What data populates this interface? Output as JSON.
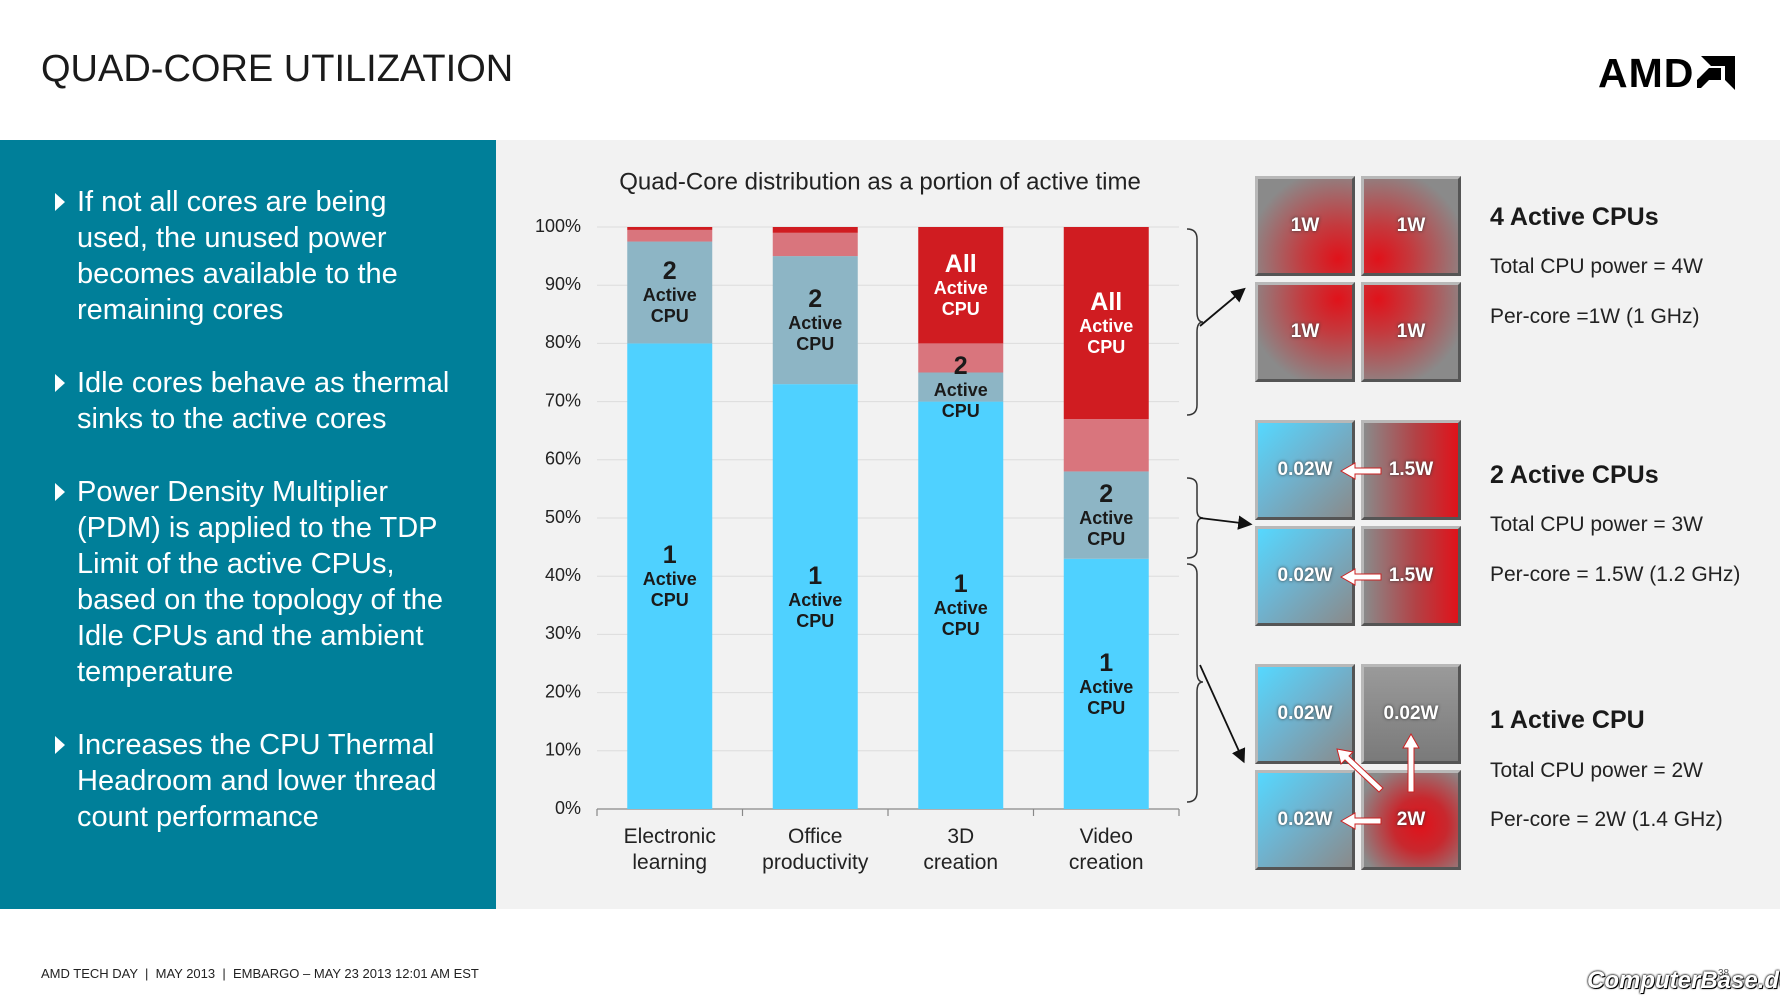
{
  "header": {
    "title": "QUAD-CORE UTILIZATION",
    "logo": "AMD"
  },
  "bullets": [
    "If not all cores are being used, the unused power becomes available to the remaining cores",
    "Idle cores behave as thermal sinks to the active cores",
    "Power Density Multiplier (PDM) is applied to the TDP Limit of the active CPUs, based on the topology of the Idle CPUs and the ambient temperature",
    "Increases the CPU Thermal Headroom and lower thread count performance"
  ],
  "chart_data": {
    "type": "bar",
    "stacked": true,
    "title": "Quad-Core distribution as a portion of active time",
    "categories": [
      "Electronic\nlearning",
      "Office\nproductivity",
      "3D\ncreation",
      "Video\ncreation"
    ],
    "series": [
      {
        "name": "1\nActive\nCPU",
        "color": "#4fd1ff",
        "values": [
          80,
          73,
          70,
          43
        ]
      },
      {
        "name": "2\nActive\nCPU",
        "color": "#8db5c5",
        "values": [
          17.5,
          22,
          5,
          15
        ]
      },
      {
        "color": "#d9757d",
        "values": [
          2,
          4,
          5,
          9
        ]
      },
      {
        "name": "All\nActive\nCPU",
        "color": "#d01c21",
        "values": [
          0.5,
          1,
          20,
          33
        ]
      }
    ],
    "ylim": [
      0,
      100
    ],
    "yticks": [
      {
        "value": 0,
        "label": "0%"
      },
      {
        "value": 10,
        "label": "10%"
      },
      {
        "value": 20,
        "label": "20%"
      },
      {
        "value": 30,
        "label": "30%"
      },
      {
        "value": 40,
        "label": "40%"
      },
      {
        "value": 50,
        "label": "50%"
      },
      {
        "value": 60,
        "label": "60%"
      },
      {
        "value": 70,
        "label": "70%"
      },
      {
        "value": 80,
        "label": "80%"
      },
      {
        "value": 90,
        "label": "90%"
      },
      {
        "value": 100,
        "label": "100%"
      }
    ],
    "grid": true
  },
  "configs": [
    {
      "heading": "4 Active CPUs",
      "lines": [
        "Total CPU power = 4W",
        "Per-core =1W (1 GHz)"
      ],
      "cells": [
        "1W",
        "1W",
        "1W",
        "1W"
      ]
    },
    {
      "heading": "2 Active CPUs",
      "lines": [
        "Total CPU power = 3W",
        "Per-core = 1.5W (1.2 GHz)"
      ],
      "cells": [
        "0.02W",
        "1.5W",
        "0.02W",
        "1.5W"
      ]
    },
    {
      "heading": "1 Active CPU",
      "lines": [
        "Total CPU power = 2W",
        "Per-core = 2W (1.4 GHz)"
      ],
      "cells": [
        "0.02W",
        "0.02W",
        "0.02W",
        "2W"
      ]
    }
  ],
  "footer": {
    "text": "AMD TECH DAY  |  MAY 2013  |  EMBARGO – MAY 23 2013 12:01 AM EST",
    "watermark": "ComputerBase.de",
    "page": "38"
  }
}
